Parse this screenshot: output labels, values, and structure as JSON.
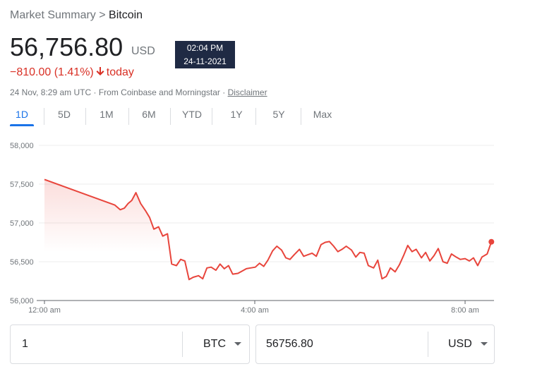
{
  "breadcrumb": {
    "parent": "Market Summary",
    "separator": ">",
    "current": "Bitcoin"
  },
  "quote": {
    "price": "56,756.80",
    "currency": "USD",
    "change": "−810.00 (1.41%)",
    "period": "today",
    "tooltip_time": "02:04 PM",
    "tooltip_date": "24-11-2021",
    "info": "24 Nov, 8:29 am UTC · From Coinbase and Morningstar ·",
    "disclaimer": "Disclaimer"
  },
  "tabs": [
    "1D",
    "5D",
    "1M",
    "6M",
    "YTD",
    "1Y",
    "5Y",
    "Max"
  ],
  "converter": {
    "amount": "1",
    "from": "BTC",
    "result": "56756.80",
    "to": "USD"
  },
  "chart_data": {
    "type": "line",
    "color": "#e8453c",
    "grid": true,
    "x": [
      0,
      1.34,
      1.44,
      1.52,
      1.59,
      1.66,
      1.74,
      1.83,
      1.92,
      2.0,
      2.08,
      2.17,
      2.25,
      2.34,
      2.42,
      2.51,
      2.59,
      2.67,
      2.75,
      2.83,
      2.93,
      3.01,
      3.09,
      3.17,
      3.26,
      3.34,
      3.42,
      3.5,
      3.58,
      3.68,
      3.76,
      3.84,
      3.92,
      4.01,
      4.09,
      4.17,
      4.25,
      4.34,
      4.42,
      4.51,
      4.59,
      4.67,
      4.75,
      4.85,
      4.93,
      5.01,
      5.09,
      5.17,
      5.26,
      5.34,
      5.42,
      5.5,
      5.58,
      5.66,
      5.74,
      5.84,
      5.92,
      6.0,
      6.08,
      6.16,
      6.26,
      6.34,
      6.42,
      6.5,
      6.58,
      6.67,
      6.75,
      6.83,
      6.91,
      6.99,
      7.07,
      7.17,
      7.25,
      7.33,
      7.41,
      7.49,
      7.58,
      7.66,
      7.74,
      7.83,
      7.91,
      8.0,
      8.08,
      8.16,
      8.24,
      8.32,
      8.42,
      8.5
    ],
    "values": [
      57560,
      57230,
      57170,
      57190,
      57250,
      57290,
      57390,
      57250,
      57160,
      57070,
      56920,
      56950,
      56830,
      56860,
      56470,
      56450,
      56530,
      56510,
      56270,
      56300,
      56320,
      56280,
      56420,
      56430,
      56390,
      56470,
      56410,
      56450,
      56340,
      56350,
      56380,
      56410,
      56420,
      56430,
      56480,
      56440,
      56520,
      56640,
      56700,
      56650,
      56550,
      56530,
      56590,
      56660,
      56570,
      56590,
      56610,
      56570,
      56720,
      56750,
      56760,
      56700,
      56630,
      56660,
      56700,
      56650,
      56560,
      56620,
      56610,
      56450,
      56420,
      56520,
      56280,
      56310,
      56420,
      56370,
      56460,
      56580,
      56710,
      56630,
      56660,
      56550,
      56620,
      56510,
      56580,
      56670,
      56500,
      56480,
      56600,
      56560,
      56530,
      56540,
      56510,
      56550,
      56450,
      56560,
      56600,
      56756.8
    ],
    "xlim": [
      0,
      8.55
    ],
    "xticks": [
      {
        "value": 0,
        "label": "12:00 am"
      },
      {
        "value": 4,
        "label": "4:00 am"
      },
      {
        "value": 8,
        "label": "8:00 am"
      }
    ],
    "ylim": [
      56000,
      58000
    ],
    "yticks": [
      {
        "value": 56000,
        "label": "56,000"
      },
      {
        "value": 56500,
        "label": "56,500"
      },
      {
        "value": 57000,
        "label": "57,000"
      },
      {
        "value": 57500,
        "label": "57,500"
      },
      {
        "value": 58000,
        "label": "58,000"
      }
    ]
  }
}
